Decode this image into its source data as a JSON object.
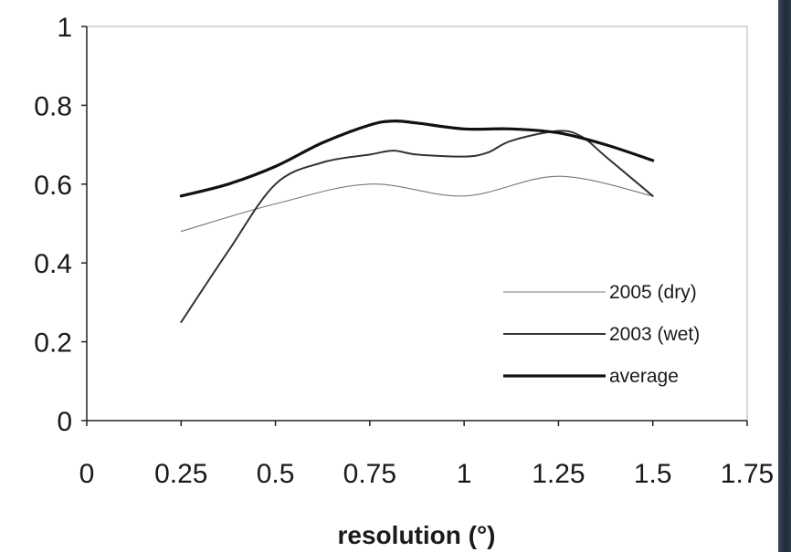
{
  "chart_data": {
    "type": "line",
    "title": "",
    "xlabel": "resolution (°)",
    "ylabel": "",
    "xlim": [
      0,
      1.75
    ],
    "ylim": [
      0,
      1
    ],
    "x_ticks": [
      "0",
      "0.25",
      "0.5",
      "0.75",
      "1",
      "1.25",
      "1.5",
      "1.75"
    ],
    "x_tick_values": [
      0,
      0.25,
      0.5,
      0.75,
      1,
      1.25,
      1.5,
      1.75
    ],
    "y_ticks": [
      "0",
      "0.2",
      "0.4",
      "0.6",
      "0.8",
      "1"
    ],
    "y_tick_values": [
      0,
      0.2,
      0.4,
      0.6,
      0.8,
      1
    ],
    "grid": false,
    "legend_position": "bottom-right",
    "series": [
      {
        "name": "2005 (dry)",
        "color": "#777777",
        "style": "thin",
        "points": [
          [
            0.25,
            0.48
          ],
          [
            0.5,
            0.55
          ],
          [
            0.75,
            0.6
          ],
          [
            1.0,
            0.57
          ],
          [
            1.25,
            0.62
          ],
          [
            1.5,
            0.57
          ]
        ]
      },
      {
        "name": "2003 (wet)",
        "color": "#333333",
        "style": "medium",
        "points": [
          [
            0.25,
            0.25
          ],
          [
            0.375,
            0.43
          ],
          [
            0.5,
            0.6
          ],
          [
            0.625,
            0.655
          ],
          [
            0.75,
            0.675
          ],
          [
            0.8125,
            0.685
          ],
          [
            0.875,
            0.675
          ],
          [
            1.0,
            0.67
          ],
          [
            1.0625,
            0.68
          ],
          [
            1.125,
            0.71
          ],
          [
            1.25,
            0.735
          ],
          [
            1.3125,
            0.72
          ],
          [
            1.375,
            0.67
          ],
          [
            1.5,
            0.57
          ]
        ]
      },
      {
        "name": "average",
        "color": "#111111",
        "style": "thick",
        "points": [
          [
            0.25,
            0.57
          ],
          [
            0.375,
            0.6
          ],
          [
            0.5,
            0.645
          ],
          [
            0.625,
            0.705
          ],
          [
            0.75,
            0.75
          ],
          [
            0.8125,
            0.76
          ],
          [
            0.875,
            0.755
          ],
          [
            1.0,
            0.74
          ],
          [
            1.125,
            0.74
          ],
          [
            1.25,
            0.73
          ],
          [
            1.375,
            0.7
          ],
          [
            1.5,
            0.66
          ]
        ]
      }
    ]
  }
}
